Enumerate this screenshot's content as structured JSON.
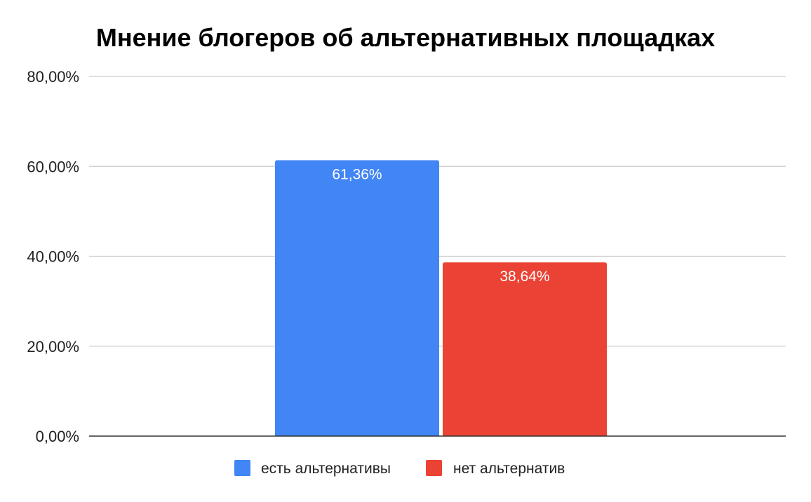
{
  "chart_data": {
    "type": "bar",
    "title": "Мнение блогеров об альтернативных площадках",
    "xlabel": "",
    "ylabel": "",
    "ylim": [
      0,
      0.8
    ],
    "yticks": [
      0,
      0.2,
      0.4,
      0.6,
      0.8
    ],
    "ytick_labels": [
      "0,00%",
      "20,00%",
      "40,00%",
      "60,00%",
      "80,00%"
    ],
    "grid": true,
    "legend_position": "bottom",
    "series": [
      {
        "name": "есть альтернативы",
        "values": [
          0.6136
        ],
        "label": "61,36%",
        "color": "#4285F4"
      },
      {
        "name": "нет альтернатив",
        "values": [
          0.3864
        ],
        "label": "38,64%",
        "color": "#EA4335"
      }
    ]
  }
}
